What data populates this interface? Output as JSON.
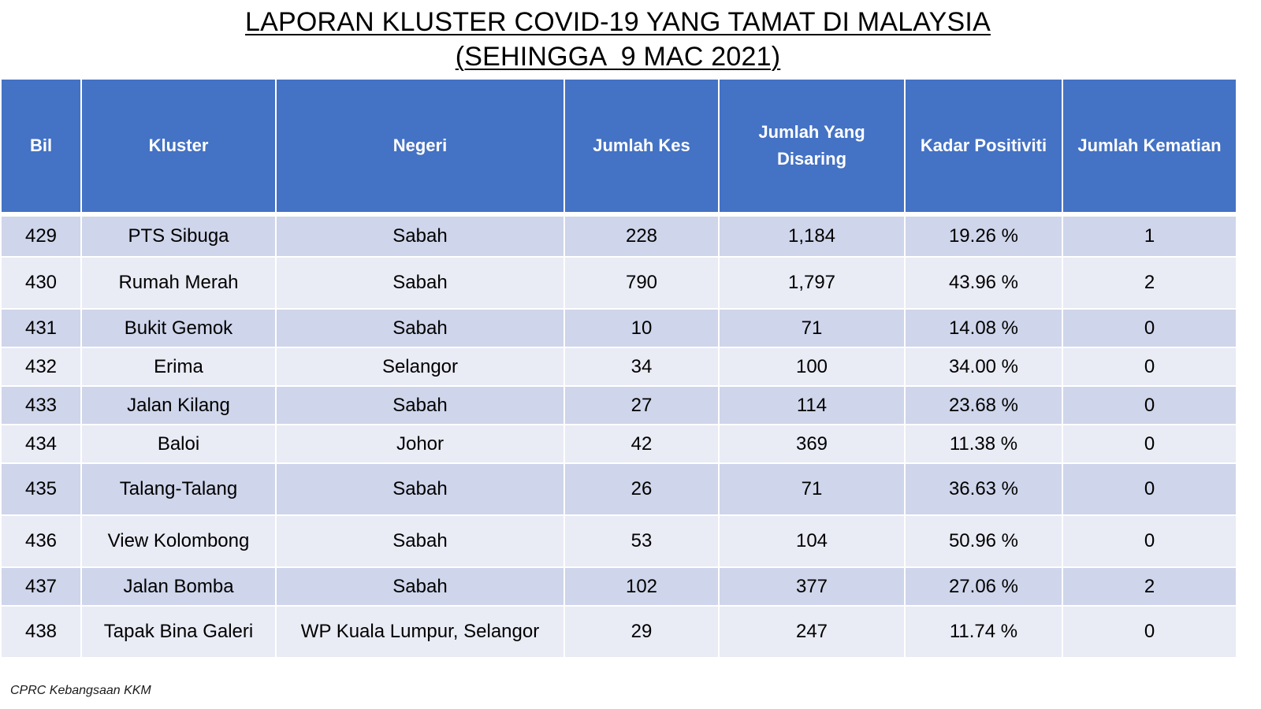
{
  "title": {
    "line1": "LAPORAN KLUSTER COVID-19 YANG TAMAT DI MALAYSIA",
    "line2": "(SEHINGGA  9 MAC 2021)"
  },
  "chart_data": {
    "type": "table",
    "title": "LAPORAN KLUSTER COVID-19 YANG TAMAT DI MALAYSIA (SEHINGGA  9 MAC 2021)",
    "columns": [
      "Bil",
      "Kluster",
      "Negeri",
      "Jumlah Kes",
      "Jumlah Yang Disaring",
      "Kadar Positiviti",
      "Jumlah Kematian"
    ],
    "rows": [
      [
        "429",
        "PTS Sibuga",
        "Sabah",
        "228",
        "1,184",
        "19.26 %",
        "1"
      ],
      [
        "430",
        "Rumah Merah",
        "Sabah",
        "790",
        "1,797",
        "43.96 %",
        "2"
      ],
      [
        "431",
        "Bukit Gemok",
        "Sabah",
        "10",
        "71",
        "14.08 %",
        "0"
      ],
      [
        "432",
        "Erima",
        "Selangor",
        "34",
        "100",
        "34.00 %",
        "0"
      ],
      [
        "433",
        "Jalan Kilang",
        "Sabah",
        "27",
        "114",
        "23.68 %",
        "0"
      ],
      [
        "434",
        "Baloi",
        "Johor",
        "42",
        "369",
        "11.38 %",
        "0"
      ],
      [
        "435",
        "Talang-Talang",
        "Sabah",
        "26",
        "71",
        "36.63 %",
        "0"
      ],
      [
        "436",
        "View Kolombong",
        "Sabah",
        "53",
        "104",
        "50.96 %",
        "0"
      ],
      [
        "437",
        "Jalan Bomba",
        "Sabah",
        "102",
        "377",
        "27.06 %",
        "2"
      ],
      [
        "438",
        "Tapak Bina Galeri",
        "WP Kuala Lumpur, Selangor",
        "29",
        "247",
        "11.74 %",
        "0"
      ]
    ]
  },
  "footer": "CPRC Kebangsaan KKM",
  "colors": {
    "header_bg": "#4472c4",
    "header_text": "#ffffff",
    "row_odd_bg": "#cfd5ea",
    "row_even_bg": "#e9ebf5"
  }
}
